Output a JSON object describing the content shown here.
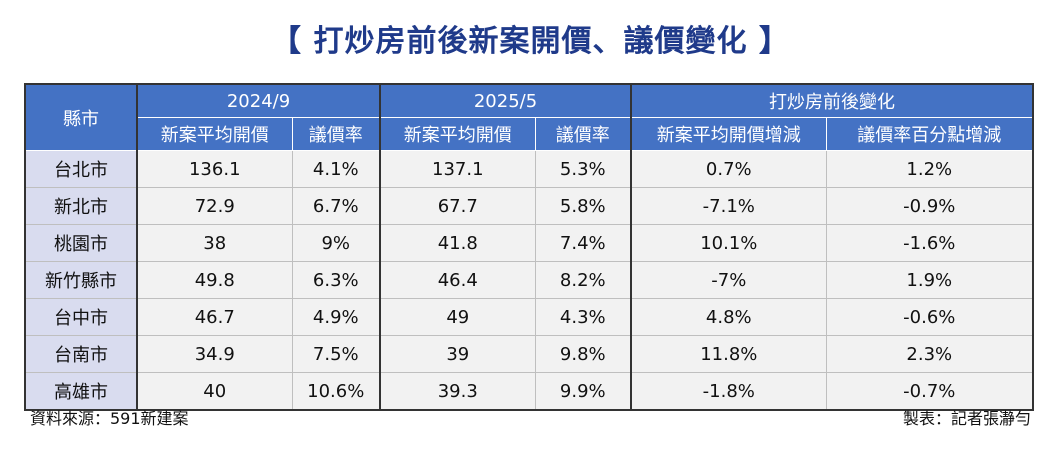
{
  "title": "【 打炒房前後新案開價、議價變化 】",
  "header": {
    "city": "縣市",
    "groups": [
      "2024/9",
      "2025/5",
      "打炒房前後變化"
    ],
    "sub": [
      "新案平均開價",
      "議價率",
      "新案平均開價",
      "議價率",
      "新案平均開價增減",
      "議價率百分點增減"
    ]
  },
  "rows": [
    {
      "city": "台北市",
      "c1": "136.1",
      "c2": "4.1%",
      "c3": "137.1",
      "c4": "5.3%",
      "c5": "0.7%",
      "c6": "1.2%"
    },
    {
      "city": "新北市",
      "c1": "72.9",
      "c2": "6.7%",
      "c3": "67.7",
      "c4": "5.8%",
      "c5": "-7.1%",
      "c6": "-0.9%"
    },
    {
      "city": "桃園市",
      "c1": "38",
      "c2": "9%",
      "c3": "41.8",
      "c4": "7.4%",
      "c5": "10.1%",
      "c6": "-1.6%"
    },
    {
      "city": "新竹縣市",
      "c1": "49.8",
      "c2": "6.3%",
      "c3": "46.4",
      "c4": "8.2%",
      "c5": "-7%",
      "c6": "1.9%"
    },
    {
      "city": "台中市",
      "c1": "46.7",
      "c2": "4.9%",
      "c3": "49",
      "c4": "4.3%",
      "c5": "4.8%",
      "c6": "-0.6%"
    },
    {
      "city": "台南市",
      "c1": "34.9",
      "c2": "7.5%",
      "c3": "39",
      "c4": "9.8%",
      "c5": "11.8%",
      "c6": "2.3%"
    },
    {
      "city": "高雄市",
      "c1": "40",
      "c2": "10.6%",
      "c3": "39.3",
      "c4": "9.9%",
      "c5": "-1.8%",
      "c6": "-0.7%"
    }
  ],
  "footer": {
    "source": "資料來源：591新建案",
    "credit": "製表：記者張瀞勻"
  },
  "colors": {
    "header_bg": "#4472c4",
    "city_bg": "#d9dcef",
    "title": "#1f3a8a"
  }
}
